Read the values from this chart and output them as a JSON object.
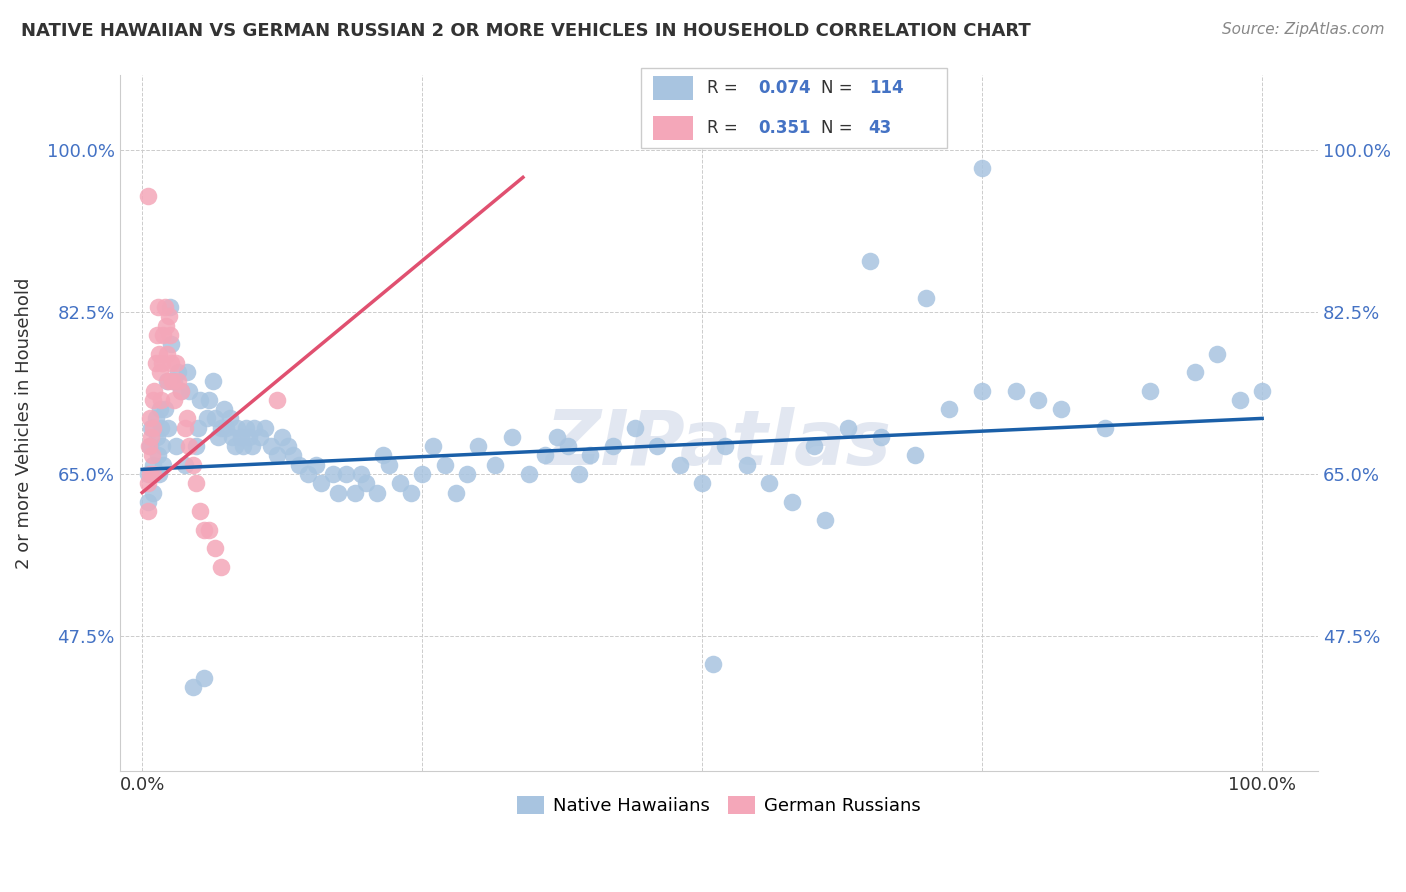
{
  "title": "NATIVE HAWAIIAN VS GERMAN RUSSIAN 2 OR MORE VEHICLES IN HOUSEHOLD CORRELATION CHART",
  "source": "Source: ZipAtlas.com",
  "ylabel": "2 or more Vehicles in Household",
  "watermark": "ZIPatlas",
  "blue_color": "#a8c4e0",
  "pink_color": "#f4a7b9",
  "blue_line_color": "#1a5fa8",
  "pink_line_color": "#e05070",
  "legend_R_blue": "0.074",
  "legend_N_blue": "114",
  "legend_R_pink": "0.351",
  "legend_N_pink": "43",
  "blue_scatter_x": [
    0.005,
    0.005,
    0.007,
    0.008,
    0.01,
    0.01,
    0.012,
    0.013,
    0.014,
    0.015,
    0.016,
    0.017,
    0.018,
    0.019,
    0.02,
    0.022,
    0.023,
    0.025,
    0.026,
    0.028,
    0.03,
    0.032,
    0.035,
    0.038,
    0.04,
    0.042,
    0.045,
    0.048,
    0.05,
    0.052,
    0.055,
    0.058,
    0.06,
    0.063,
    0.065,
    0.068,
    0.07,
    0.073,
    0.075,
    0.078,
    0.08,
    0.083,
    0.085,
    0.088,
    0.09,
    0.093,
    0.095,
    0.098,
    0.1,
    0.105,
    0.11,
    0.115,
    0.12,
    0.125,
    0.13,
    0.135,
    0.14,
    0.148,
    0.155,
    0.16,
    0.17,
    0.175,
    0.182,
    0.19,
    0.195,
    0.2,
    0.21,
    0.215,
    0.22,
    0.23,
    0.24,
    0.25,
    0.26,
    0.27,
    0.28,
    0.29,
    0.3,
    0.315,
    0.33,
    0.345,
    0.36,
    0.37,
    0.38,
    0.39,
    0.4,
    0.42,
    0.44,
    0.46,
    0.48,
    0.5,
    0.52,
    0.54,
    0.56,
    0.58,
    0.6,
    0.63,
    0.66,
    0.69,
    0.72,
    0.75,
    0.78,
    0.82,
    0.86,
    0.9,
    0.94,
    0.96,
    0.98,
    1.0,
    0.51,
    0.61,
    0.65,
    0.7,
    0.75,
    0.8
  ],
  "blue_scatter_y": [
    0.65,
    0.62,
    0.68,
    0.7,
    0.66,
    0.63,
    0.71,
    0.69,
    0.67,
    0.65,
    0.72,
    0.7,
    0.68,
    0.66,
    0.72,
    0.75,
    0.7,
    0.83,
    0.79,
    0.75,
    0.68,
    0.76,
    0.74,
    0.66,
    0.76,
    0.74,
    0.42,
    0.68,
    0.7,
    0.73,
    0.43,
    0.71,
    0.73,
    0.75,
    0.71,
    0.69,
    0.7,
    0.72,
    0.7,
    0.71,
    0.69,
    0.68,
    0.7,
    0.69,
    0.68,
    0.7,
    0.69,
    0.68,
    0.7,
    0.69,
    0.7,
    0.68,
    0.67,
    0.69,
    0.68,
    0.67,
    0.66,
    0.65,
    0.66,
    0.64,
    0.65,
    0.63,
    0.65,
    0.63,
    0.65,
    0.64,
    0.63,
    0.67,
    0.66,
    0.64,
    0.63,
    0.65,
    0.68,
    0.66,
    0.63,
    0.65,
    0.68,
    0.66,
    0.69,
    0.65,
    0.67,
    0.69,
    0.68,
    0.65,
    0.67,
    0.68,
    0.7,
    0.68,
    0.66,
    0.64,
    0.68,
    0.66,
    0.64,
    0.62,
    0.68,
    0.7,
    0.69,
    0.67,
    0.72,
    0.74,
    0.74,
    0.72,
    0.7,
    0.74,
    0.76,
    0.78,
    0.73,
    0.74,
    0.445,
    0.6,
    0.88,
    0.84,
    0.98,
    0.73
  ],
  "pink_scatter_x": [
    0.005,
    0.005,
    0.006,
    0.007,
    0.007,
    0.008,
    0.009,
    0.01,
    0.01,
    0.01,
    0.011,
    0.012,
    0.013,
    0.014,
    0.015,
    0.016,
    0.017,
    0.018,
    0.019,
    0.02,
    0.021,
    0.022,
    0.023,
    0.024,
    0.025,
    0.026,
    0.027,
    0.028,
    0.03,
    0.032,
    0.035,
    0.038,
    0.04,
    0.042,
    0.045,
    0.048,
    0.052,
    0.055,
    0.06,
    0.065,
    0.07,
    0.12,
    0.005
  ],
  "pink_scatter_y": [
    0.64,
    0.61,
    0.68,
    0.65,
    0.71,
    0.69,
    0.67,
    0.73,
    0.7,
    0.65,
    0.74,
    0.77,
    0.8,
    0.83,
    0.78,
    0.76,
    0.73,
    0.77,
    0.8,
    0.83,
    0.81,
    0.78,
    0.75,
    0.82,
    0.8,
    0.77,
    0.75,
    0.73,
    0.77,
    0.75,
    0.74,
    0.7,
    0.71,
    0.68,
    0.66,
    0.64,
    0.61,
    0.59,
    0.59,
    0.57,
    0.55,
    0.73,
    0.95
  ],
  "blue_line_x0": 0.0,
  "blue_line_x1": 1.0,
  "blue_line_y0": 0.655,
  "blue_line_y1": 0.71,
  "pink_line_x0": 0.0,
  "pink_line_x1": 0.34,
  "pink_line_y0": 0.63,
  "pink_line_y1": 0.97,
  "xlim_min": -0.02,
  "xlim_max": 1.05,
  "ylim_min": 0.33,
  "ylim_max": 1.08,
  "ytick_vals": [
    0.475,
    0.65,
    0.825,
    1.0
  ],
  "ytick_labels": [
    "47.5%",
    "65.0%",
    "82.5%",
    "100.0%"
  ],
  "xtick_vals": [
    0.0,
    0.25,
    0.5,
    0.75,
    1.0
  ],
  "xtick_labels": [
    "0.0%",
    "",
    "",
    "",
    "100.0%"
  ]
}
